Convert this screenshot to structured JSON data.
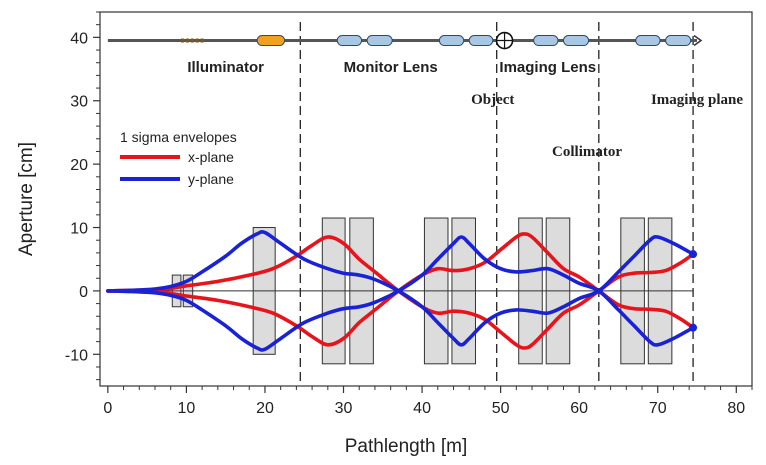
{
  "chart_data": {
    "type": "line",
    "xlabel": "Pathlength [m]",
    "ylabel": "Aperture [cm]",
    "xlim": [
      -1,
      82
    ],
    "ylim": [
      -15,
      44
    ],
    "x_ticks": [
      0,
      10,
      20,
      30,
      40,
      50,
      60,
      70,
      80
    ],
    "y_ticks": [
      -10,
      0,
      10,
      20,
      30,
      40
    ],
    "grid": false,
    "legend": {
      "title": "1 sigma envelopes",
      "placement": "left",
      "entries": [
        {
          "label": "x-plane",
          "color": "#e8141b"
        },
        {
          "label": "y-plane",
          "color": "#1a22d6"
        }
      ]
    },
    "section_labels": [
      {
        "text": "Illuminator",
        "x": 15,
        "y": 34.5,
        "style": "sans"
      },
      {
        "text": "Monitor Lens",
        "x": 36,
        "y": 34.5,
        "style": "sans"
      },
      {
        "text": "Imaging Lens",
        "x": 56,
        "y": 34.5,
        "style": "sans"
      },
      {
        "text": "Object",
        "x": 49,
        "y": 29.5,
        "style": "serif"
      },
      {
        "text": "Imaging plane",
        "x": 75,
        "y": 29.5,
        "style": "serif"
      },
      {
        "text": "Collimator",
        "x": 61,
        "y": 21.3,
        "style": "serif"
      }
    ],
    "dashed_lines_x": [
      24.5,
      49.5,
      62.5,
      74.5
    ],
    "series": [
      {
        "name": "x-plane",
        "color": "#e8141b",
        "x": [
          0,
          3,
          6,
          8,
          10,
          14,
          18,
          21,
          24,
          26,
          28,
          30,
          32,
          34,
          37,
          40,
          42,
          44,
          46,
          48,
          50,
          52,
          53,
          54,
          56,
          58,
          60,
          62.5,
          65,
          67,
          69,
          71,
          73,
          74.5
        ],
        "y": [
          0,
          0.1,
          0.2,
          0.4,
          0.8,
          1.5,
          2.5,
          3.5,
          5.5,
          7.2,
          8.5,
          7.5,
          5,
          3,
          0,
          -2.5,
          -3.5,
          -3.2,
          -3.5,
          -4.5,
          -6.5,
          -8.5,
          -9,
          -8.5,
          -6,
          -3.5,
          -2.2,
          0,
          2.2,
          2.8,
          2.9,
          3.2,
          4.5,
          5.8
        ]
      },
      {
        "name": "x-plane",
        "color": "#e8141b",
        "x": [
          0,
          3,
          6,
          8,
          10,
          14,
          18,
          21,
          24,
          26,
          28,
          30,
          32,
          34,
          37,
          40,
          42,
          44,
          46,
          48,
          50,
          52,
          53,
          54,
          56,
          58,
          60,
          62.5,
          65,
          67,
          69,
          71,
          73,
          74.5
        ],
        "y": [
          0,
          -0.1,
          -0.2,
          -0.4,
          -0.8,
          -1.5,
          -2.5,
          -3.5,
          -5.5,
          -7.2,
          -8.5,
          -7.5,
          -5,
          -3,
          0,
          2.5,
          3.5,
          3.2,
          3.5,
          4.5,
          6.5,
          8.5,
          9,
          8.5,
          6,
          3.5,
          2.2,
          0,
          -2.2,
          -2.8,
          -2.9,
          -3.2,
          -4.5,
          -5.8
        ]
      },
      {
        "name": "y-plane",
        "color": "#1a22d6",
        "x": [
          0,
          3,
          6,
          8,
          10,
          12,
          15,
          17,
          19,
          20,
          22,
          25,
          28,
          30,
          32,
          34,
          37,
          40,
          42,
          44,
          45,
          46,
          48,
          50,
          52,
          54,
          56,
          58,
          60,
          62.5,
          65,
          67,
          69,
          70,
          72,
          74.5
        ],
        "y": [
          0,
          0.1,
          0.3,
          0.7,
          1.5,
          3,
          5.5,
          7.5,
          9,
          9.2,
          7.5,
          5,
          3.5,
          2.8,
          2.5,
          1.8,
          0,
          -2.5,
          -5,
          -7.5,
          -8.5,
          -7.5,
          -5,
          -3.5,
          -3,
          -3.2,
          -3.5,
          -2.5,
          -1.2,
          0,
          3,
          5.5,
          8,
          8.5,
          7.5,
          5.8
        ]
      },
      {
        "name": "y-plane",
        "color": "#1a22d6",
        "x": [
          0,
          3,
          6,
          8,
          10,
          12,
          15,
          17,
          19,
          20,
          22,
          25,
          28,
          30,
          32,
          34,
          37,
          40,
          42,
          44,
          45,
          46,
          48,
          50,
          52,
          54,
          56,
          58,
          60,
          62.5,
          65,
          67,
          69,
          70,
          72,
          74.5
        ],
        "y": [
          0,
          -0.1,
          -0.3,
          -0.7,
          -1.5,
          -3,
          -5.5,
          -7.5,
          -9,
          -9.2,
          -7.5,
          -5,
          -3.5,
          -2.8,
          -2.5,
          -1.8,
          0,
          2.5,
          5,
          7.5,
          8.5,
          7.5,
          5,
          3.5,
          3,
          3.2,
          3.5,
          2.5,
          1.2,
          0,
          -3,
          -5.5,
          -8,
          -8.5,
          -7.5,
          -5.8
        ]
      }
    ],
    "magnets": [
      {
        "x0": 8.2,
        "x1": 9.3,
        "y0": -2.5,
        "y1": 2.5
      },
      {
        "x0": 9.6,
        "x1": 10.8,
        "y0": -2.5,
        "y1": 2.5
      },
      {
        "x0": 18.5,
        "x1": 21.3,
        "y0": -10,
        "y1": 10
      },
      {
        "x0": 27.3,
        "x1": 30.2,
        "y0": -11.5,
        "y1": 11.5
      },
      {
        "x0": 30.8,
        "x1": 33.8,
        "y0": -11.5,
        "y1": 11.5
      },
      {
        "x0": 40.3,
        "x1": 43.3,
        "y0": -11.5,
        "y1": 11.5
      },
      {
        "x0": 43.8,
        "x1": 46.8,
        "y0": -11.5,
        "y1": 11.5
      },
      {
        "x0": 52.3,
        "x1": 55.3,
        "y0": -11.5,
        "y1": 11.5
      },
      {
        "x0": 55.8,
        "x1": 58.8,
        "y0": -11.5,
        "y1": 11.5
      },
      {
        "x0": 65.3,
        "x1": 68.3,
        "y0": -11.5,
        "y1": 11.5
      },
      {
        "x0": 68.8,
        "x1": 71.8,
        "y0": -11.5,
        "y1": 11.5
      }
    ],
    "beamline_schematic": {
      "y": 39.5,
      "x_start": 0,
      "x_end": 75,
      "elements": [
        {
          "x0": 9.5,
          "x1": 12.0,
          "shape": "dots",
          "color": "#7a5a1a"
        },
        {
          "x0": 19.0,
          "x1": 22.5,
          "shape": "pill",
          "color": "#f0a21f"
        },
        {
          "x0": 29.2,
          "x1": 32.3,
          "shape": "pill",
          "color": "#a9c7e3"
        },
        {
          "x0": 33.0,
          "x1": 36.2,
          "shape": "pill",
          "color": "#a9c7e3"
        },
        {
          "x0": 42.2,
          "x1": 45.3,
          "shape": "pill",
          "color": "#a9c7e3"
        },
        {
          "x0": 46.0,
          "x1": 49.0,
          "shape": "pill",
          "color": "#a9c7e3"
        },
        {
          "x0": 54.2,
          "x1": 57.3,
          "shape": "pill",
          "color": "#a9c7e3"
        },
        {
          "x0": 58.0,
          "x1": 61.2,
          "shape": "pill",
          "color": "#a9c7e3"
        },
        {
          "x0": 67.2,
          "x1": 70.3,
          "shape": "pill",
          "color": "#a9c7e3"
        },
        {
          "x0": 71.0,
          "x1": 74.2,
          "shape": "pill",
          "color": "#a9c7e3"
        }
      ],
      "target_x": 50.5
    }
  }
}
